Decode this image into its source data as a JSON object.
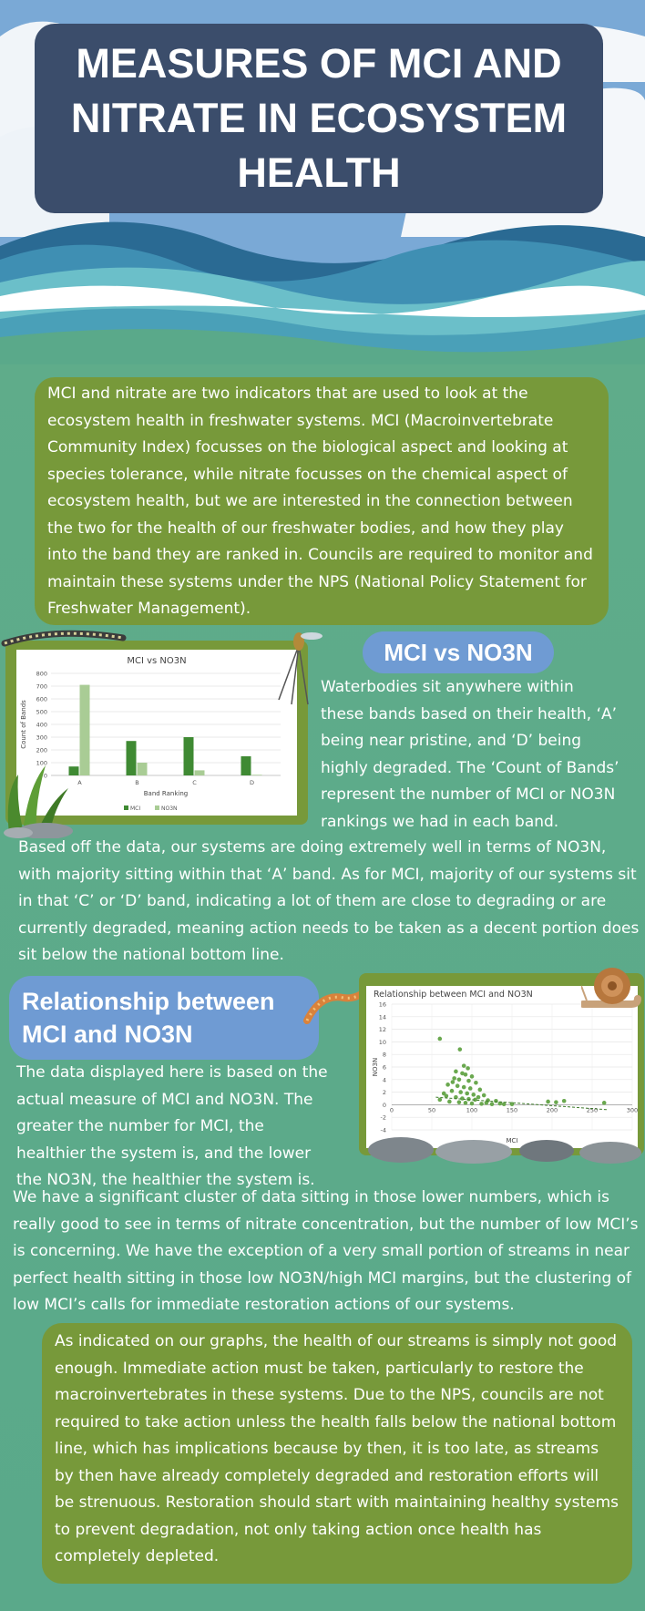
{
  "header": {
    "title": "MEASURES OF MCI AND NITRATE IN ECOSYSTEM HEALTH"
  },
  "intro": {
    "text": "MCI and nitrate are two indicators that are used to look at the ecosystem health in freshwater systems. MCI (Macroinvertebrate Community Index) focusses on the biological aspect and looking at species tolerance, while nitrate focusses on the chemical aspect of ecosystem health, but we are interested in the connection between the two for the health of our freshwater bodies, and how they play into the band they are ranked in. Councils are required to monitor and maintain these systems under the NPS (National Policy Statement for Freshwater Management)."
  },
  "section1": {
    "heading": "MCI vs NO3N",
    "side_text": "Waterbodies sit anywhere within these bands based on their health, ‘A’ being near pristine, and ‘D’ being highly degraded. The ‘Count of Bands’ represent the number of MCI or NO3N rankings  we had in each band.",
    "body_text": "Based off the data, our systems are doing extremely well in terms of NO3N, with majority sitting within that ‘A’ band. As for MCI, majority of our systems sit in that ‘C’ or ‘D’ band, indicating a lot of them are close to degrading or are currently degraded, meaning action needs to be taken as a decent portion does sit below the national bottom line."
  },
  "section2": {
    "heading": "Relationship between MCI and NO3N",
    "side_text": "The data displayed here is based on the actual measure of MCI and NO3N. The greater the number for MCI, the healthier the system is, and the lower the NO3N, the healthier the system is.",
    "body_text": "We have a significant cluster of data sitting in those lower numbers, which is really good to see in terms of nitrate concentration, but the number of low MCI’s is concerning. We have the exception of a very small portion of streams in near perfect health sitting in those low NO3N/high MCI margins, but the clustering of low MCI’s calls for immediate restoration actions of our systems."
  },
  "conclusion": {
    "text": "As indicated on our graphs, the health of our streams is simply not good enough. Immediate action must be taken, particularly to restore the macroinvertebrates in these systems. Due to the NPS, councils are not required to take action unless the health falls below the national bottom line, which has implications because by then, it is too late, as streams by then have already completely degraded and restoration efforts will be strenuous. Restoration should start with maintaining healthy systems to prevent degradation, not only taking action once health has completely depleted."
  },
  "chart_data": [
    {
      "type": "bar",
      "title": "MCI vs NO3N",
      "xlabel": "Band Ranking",
      "ylabel": "Count of Bands",
      "categories": [
        "A",
        "B",
        "C",
        "D"
      ],
      "series": [
        {
          "name": "MCI",
          "values": [
            70,
            270,
            300,
            150
          ],
          "color": "#3f8a33"
        },
        {
          "name": "NO3N",
          "values": [
            710,
            100,
            40,
            5
          ],
          "color": "#a9cc95"
        }
      ],
      "ylim": [
        0,
        800
      ],
      "yticks": [
        0,
        100,
        200,
        300,
        400,
        500,
        600,
        700,
        800
      ]
    },
    {
      "type": "scatter",
      "title": "Relationship between MCI and NO3N",
      "xlabel": "MCI",
      "ylabel": "NO3N",
      "xlim": [
        0,
        300
      ],
      "ylim": [
        -4,
        16
      ],
      "xticks": [
        0,
        50,
        100,
        150,
        200,
        250,
        300
      ],
      "yticks": [
        -4,
        -2,
        0,
        2,
        4,
        6,
        8,
        10,
        12,
        14,
        16
      ],
      "color": "#6aa84f",
      "points": [
        [
          60,
          10.5
        ],
        [
          85,
          8.8
        ],
        [
          90,
          6.2
        ],
        [
          95,
          5.8
        ],
        [
          80,
          5.3
        ],
        [
          88,
          5.0
        ],
        [
          92,
          4.8
        ],
        [
          100,
          4.5
        ],
        [
          78,
          4.2
        ],
        [
          84,
          4.0
        ],
        [
          96,
          3.8
        ],
        [
          105,
          3.5
        ],
        [
          70,
          3.2
        ],
        [
          82,
          3.0
        ],
        [
          90,
          2.8
        ],
        [
          98,
          2.6
        ],
        [
          110,
          2.4
        ],
        [
          75,
          2.2
        ],
        [
          86,
          2.0
        ],
        [
          94,
          1.8
        ],
        [
          102,
          1.6
        ],
        [
          115,
          1.5
        ],
        [
          68,
          1.4
        ],
        [
          80,
          1.2
        ],
        [
          88,
          1.0
        ],
        [
          96,
          0.9
        ],
        [
          104,
          0.8
        ],
        [
          120,
          0.7
        ],
        [
          130,
          0.6
        ],
        [
          72,
          0.5
        ],
        [
          84,
          0.4
        ],
        [
          92,
          0.3
        ],
        [
          100,
          0.2
        ],
        [
          112,
          0.15
        ],
        [
          125,
          0.1
        ],
        [
          140,
          0.1
        ],
        [
          60,
          0.8
        ],
        [
          65,
          1.8
        ],
        [
          76,
          3.6
        ],
        [
          108,
          1.2
        ],
        [
          118,
          0.3
        ],
        [
          135,
          0.2
        ],
        [
          150,
          0.1
        ],
        [
          195,
          0.5
        ],
        [
          205,
          0.4
        ],
        [
          215,
          0.6
        ],
        [
          265,
          0.3
        ]
      ],
      "trendline": [
        [
          55,
          1.2
        ],
        [
          270,
          -0.8
        ]
      ]
    }
  ]
}
